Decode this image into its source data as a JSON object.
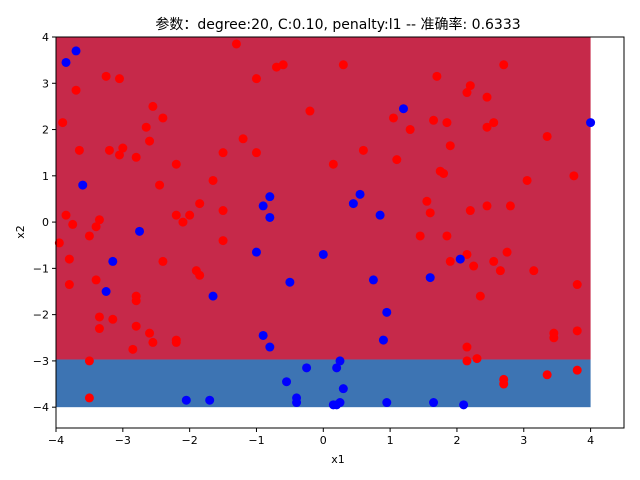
{
  "chart_data": {
    "type": "scatter",
    "title": "参数：degree:20, C:0.10, penalty:l1 -- 准确率: 0.6333",
    "xlabel": "x1",
    "ylabel": "x2",
    "xlim": [
      -4,
      4.5
    ],
    "ylim": [
      -4.45,
      4
    ],
    "x_ticks": [
      -4,
      -3,
      -2,
      -1,
      0,
      1,
      2,
      3,
      4
    ],
    "y_ticks": [
      -4,
      -3,
      -2,
      -1,
      0,
      1,
      2,
      3,
      4
    ],
    "x_tick_labels": [
      "−4",
      "−3",
      "−2",
      "−1",
      "0",
      "1",
      "2",
      "3",
      "4"
    ],
    "y_tick_labels": [
      "−4",
      "−3",
      "−2",
      "−1",
      "0",
      "1",
      "2",
      "3",
      "4"
    ],
    "grid": false,
    "legend": false,
    "decision_regions": [
      {
        "class": "red",
        "color": "#c6294a",
        "x": [
          -4,
          4
        ],
        "y": [
          -2.97,
          4
        ]
      },
      {
        "class": "blue",
        "color": "#3d74b3",
        "x": [
          -4,
          4
        ],
        "y": [
          -4,
          -2.97
        ]
      }
    ],
    "series": [
      {
        "color": "#ff0000",
        "points": [
          [
            -3.7,
            2.85
          ],
          [
            -3.9,
            2.15
          ],
          [
            -3.65,
            1.55
          ],
          [
            -3.85,
            0.15
          ],
          [
            -3.75,
            -0.05
          ],
          [
            -3.95,
            -0.45
          ],
          [
            -3.8,
            -0.8
          ],
          [
            -3.8,
            -1.35
          ],
          [
            -3.5,
            -0.3
          ],
          [
            -3.4,
            -0.1
          ],
          [
            -3.35,
            0.05
          ],
          [
            -3.4,
            -1.25
          ],
          [
            -3.35,
            -2.05
          ],
          [
            -3.35,
            -2.3
          ],
          [
            -3.15,
            -2.1
          ],
          [
            -3.5,
            -3.0
          ],
          [
            -3.5,
            -3.8
          ],
          [
            -3.25,
            3.15
          ],
          [
            -3.05,
            3.1
          ],
          [
            -3.2,
            1.55
          ],
          [
            -3.05,
            1.45
          ],
          [
            -3.0,
            1.6
          ],
          [
            -2.8,
            1.4
          ],
          [
            -2.8,
            -1.6
          ],
          [
            -2.8,
            -1.7
          ],
          [
            -2.8,
            -2.25
          ],
          [
            -2.6,
            -2.4
          ],
          [
            -2.55,
            -2.6
          ],
          [
            -2.85,
            -2.75
          ],
          [
            -2.65,
            2.05
          ],
          [
            -2.6,
            1.75
          ],
          [
            -2.55,
            2.5
          ],
          [
            -2.4,
            2.25
          ],
          [
            -2.45,
            0.8
          ],
          [
            -2.4,
            -0.85
          ],
          [
            -2.2,
            1.25
          ],
          [
            -2.2,
            0.15
          ],
          [
            -2.1,
            0.0
          ],
          [
            -2.0,
            0.15
          ],
          [
            -1.85,
            0.4
          ],
          [
            -1.9,
            -1.05
          ],
          [
            -1.85,
            -1.15
          ],
          [
            -2.2,
            -2.55
          ],
          [
            -2.2,
            -2.6
          ],
          [
            -1.65,
            0.9
          ],
          [
            -1.5,
            1.5
          ],
          [
            -1.5,
            0.25
          ],
          [
            -1.5,
            -0.4
          ],
          [
            -1.3,
            3.85
          ],
          [
            -1.2,
            1.8
          ],
          [
            -1.0,
            3.1
          ],
          [
            -1.0,
            1.5
          ],
          [
            -0.7,
            3.35
          ],
          [
            -0.6,
            3.4
          ],
          [
            -0.2,
            2.4
          ],
          [
            0.3,
            3.4
          ],
          [
            0.6,
            1.55
          ],
          [
            0.15,
            1.25
          ],
          [
            1.05,
            2.25
          ],
          [
            1.1,
            1.35
          ],
          [
            1.3,
            2.0
          ],
          [
            1.45,
            -0.3
          ],
          [
            1.55,
            0.45
          ],
          [
            1.6,
            0.2
          ],
          [
            1.65,
            2.2
          ],
          [
            1.7,
            3.15
          ],
          [
            1.75,
            1.1
          ],
          [
            1.8,
            1.05
          ],
          [
            1.85,
            2.15
          ],
          [
            1.9,
            1.65
          ],
          [
            1.85,
            -0.3
          ],
          [
            1.9,
            -0.85
          ],
          [
            2.15,
            2.8
          ],
          [
            2.2,
            2.95
          ],
          [
            2.2,
            0.25
          ],
          [
            2.15,
            -0.7
          ],
          [
            2.25,
            -0.95
          ],
          [
            2.15,
            -2.7
          ],
          [
            2.15,
            -3.0
          ],
          [
            2.3,
            -2.95
          ],
          [
            2.35,
            -1.6
          ],
          [
            2.45,
            2.7
          ],
          [
            2.45,
            2.05
          ],
          [
            2.55,
            2.15
          ],
          [
            2.45,
            0.35
          ],
          [
            2.55,
            -0.85
          ],
          [
            2.65,
            -1.05
          ],
          [
            2.7,
            3.4
          ],
          [
            2.75,
            -0.65
          ],
          [
            2.8,
            0.35
          ],
          [
            3.05,
            0.9
          ],
          [
            3.15,
            -1.05
          ],
          [
            2.7,
            -3.4
          ],
          [
            2.7,
            -3.5
          ],
          [
            3.35,
            1.85
          ],
          [
            3.35,
            -3.3
          ],
          [
            3.45,
            -2.4
          ],
          [
            3.45,
            -2.5
          ],
          [
            3.75,
            1.0
          ],
          [
            3.8,
            -1.35
          ],
          [
            3.8,
            -2.35
          ],
          [
            3.8,
            -3.2
          ]
        ]
      },
      {
        "color": "#0000ff",
        "points": [
          [
            -3.7,
            3.7
          ],
          [
            -3.85,
            3.45
          ],
          [
            -3.6,
            0.8
          ],
          [
            -3.15,
            -0.85
          ],
          [
            -3.25,
            -1.5
          ],
          [
            -2.75,
            -0.2
          ],
          [
            -1.65,
            -1.6
          ],
          [
            -2.05,
            -3.85
          ],
          [
            -1.7,
            -3.85
          ],
          [
            -1.0,
            -0.65
          ],
          [
            -0.9,
            0.35
          ],
          [
            -0.8,
            0.55
          ],
          [
            -0.8,
            0.1
          ],
          [
            -0.9,
            -2.45
          ],
          [
            -0.8,
            -2.7
          ],
          [
            -0.55,
            -3.45
          ],
          [
            -0.5,
            -1.3
          ],
          [
            -0.4,
            -3.8
          ],
          [
            -0.4,
            -3.9
          ],
          [
            -0.25,
            -3.15
          ],
          [
            0.0,
            -0.7
          ],
          [
            0.15,
            -3.95
          ],
          [
            0.2,
            -3.95
          ],
          [
            0.2,
            -3.15
          ],
          [
            0.25,
            -3.0
          ],
          [
            0.25,
            -3.9
          ],
          [
            0.3,
            -3.6
          ],
          [
            0.45,
            0.4
          ],
          [
            0.55,
            0.6
          ],
          [
            0.75,
            -1.25
          ],
          [
            0.85,
            0.15
          ],
          [
            0.9,
            -2.55
          ],
          [
            0.95,
            -1.95
          ],
          [
            0.95,
            -3.9
          ],
          [
            1.2,
            2.45
          ],
          [
            1.6,
            -1.2
          ],
          [
            1.65,
            -3.9
          ],
          [
            2.05,
            -0.8
          ],
          [
            2.1,
            -3.95
          ],
          [
            4.0,
            2.15
          ]
        ]
      }
    ]
  }
}
